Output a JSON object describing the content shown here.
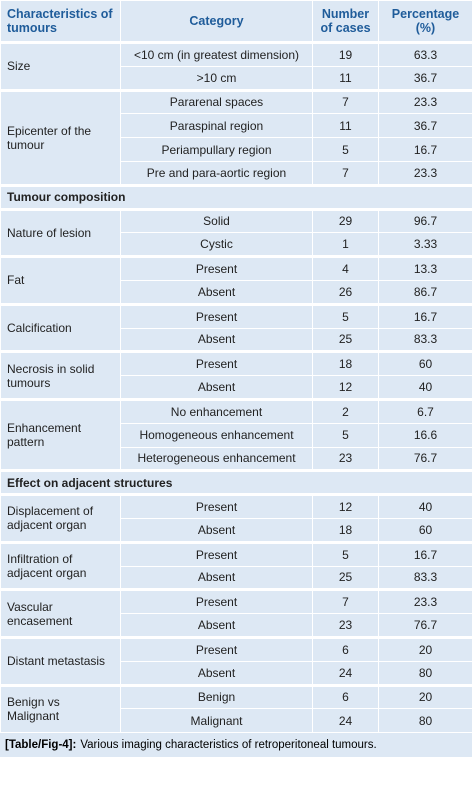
{
  "table": {
    "headers": [
      "Characteristics of tumours",
      "Category",
      "Number of cases",
      "Percentage (%)"
    ],
    "sections": [
      {
        "groups": [
          {
            "label": "Size",
            "rows": [
              [
                "<10 cm (in greatest dimension)",
                "19",
                "63.3"
              ],
              [
                ">10 cm",
                "11",
                "36.7"
              ]
            ]
          },
          {
            "label": "Epicenter of the tumour",
            "rows": [
              [
                "Pararenal spaces",
                "7",
                "23.3"
              ],
              [
                "Paraspinal region",
                "11",
                "36.7"
              ],
              [
                "Periampullary region",
                "5",
                "16.7"
              ],
              [
                "Pre and para-aortic region",
                "7",
                "23.3"
              ]
            ]
          }
        ]
      },
      {
        "title": "Tumour composition",
        "groups": [
          {
            "label": "Nature of lesion",
            "rows": [
              [
                "Solid",
                "29",
                "96.7"
              ],
              [
                "Cystic",
                "1",
                "3.33"
              ]
            ]
          },
          {
            "label": "Fat",
            "rows": [
              [
                "Present",
                "4",
                "13.3"
              ],
              [
                "Absent",
                "26",
                "86.7"
              ]
            ]
          },
          {
            "label": "Calcification",
            "rows": [
              [
                "Present",
                "5",
                "16.7"
              ],
              [
                "Absent",
                "25",
                "83.3"
              ]
            ]
          },
          {
            "label": "Necrosis in solid tumours",
            "rows": [
              [
                "Present",
                "18",
                "60"
              ],
              [
                "Absent",
                "12",
                "40"
              ]
            ]
          },
          {
            "label": "Enhancement pattern",
            "rows": [
              [
                "No enhancement",
                "2",
                "6.7"
              ],
              [
                "Homogeneous enhancement",
                "5",
                "16.6"
              ],
              [
                "Heterogeneous enhancement",
                "23",
                "76.7"
              ]
            ]
          }
        ]
      },
      {
        "title": "Effect on adjacent structures",
        "groups": [
          {
            "label": "Displacement of adjacent organ",
            "rows": [
              [
                "Present",
                "12",
                "40"
              ],
              [
                "Absent",
                "18",
                "60"
              ]
            ]
          },
          {
            "label": "Infiltration of adjacent organ",
            "rows": [
              [
                "Present",
                "5",
                "16.7"
              ],
              [
                "Absent",
                "25",
                "83.3"
              ]
            ]
          },
          {
            "label": "Vascular encasement",
            "rows": [
              [
                "Present",
                "7",
                "23.3"
              ],
              [
                "Absent",
                "23",
                "76.7"
              ]
            ]
          },
          {
            "label": "Distant metastasis",
            "rows": [
              [
                "Present",
                "6",
                "20"
              ],
              [
                "Absent",
                "24",
                "80"
              ]
            ]
          },
          {
            "label": "Benign vs Malignant",
            "rows": [
              [
                "Benign",
                "6",
                "20"
              ],
              [
                "Malignant",
                "24",
                "80"
              ]
            ]
          }
        ]
      }
    ]
  },
  "caption": {
    "label": "[Table/Fig-4]:",
    "text": "Various imaging characteristics of retroperitoneal tumours."
  }
}
